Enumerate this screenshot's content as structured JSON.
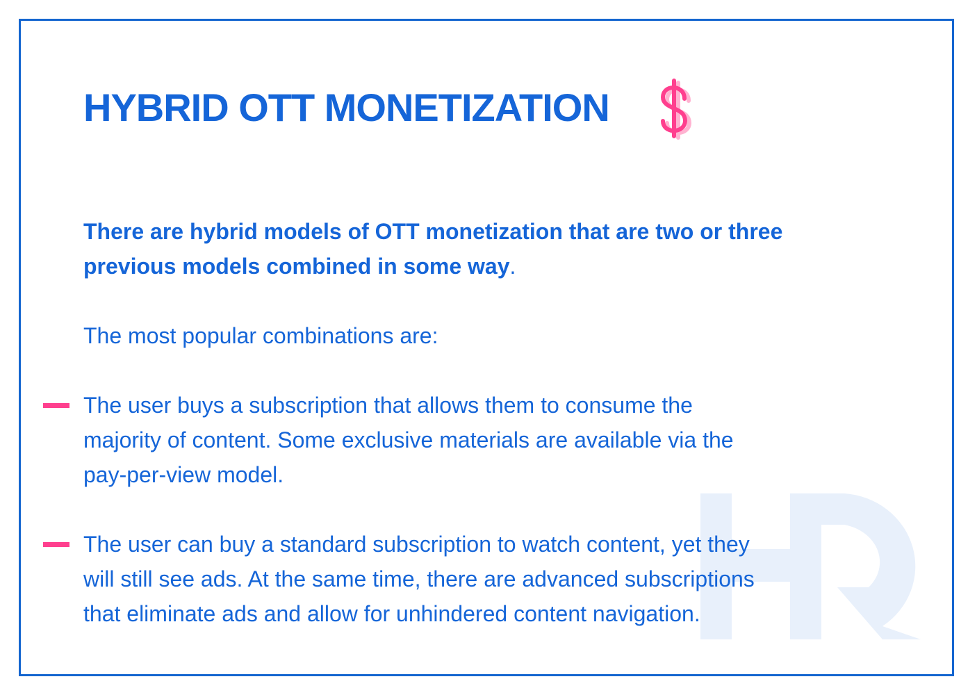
{
  "title": {
    "highlight": "HYBRID",
    "rest": " OTT MONETIZATION",
    "icon": "dollar-icon"
  },
  "intro": {
    "lines": [
      "There are hybrid models of OTT monetization that are two or three",
      "previous models combined in some way"
    ],
    "end": "."
  },
  "lead": "The most popular combinations are:",
  "bullets": [
    {
      "lines": [
        "The user buys a subscription that allows them to consume the",
        "majority of content. Some exclusive materials are available via the",
        "pay-per-view model."
      ]
    },
    {
      "lines": [
        "The user can buy a standard subscription to watch content, yet they",
        "will still see ads. At the same time, there are advanced subscriptions",
        "that eliminate ads and allow for unhindered content navigation."
      ]
    }
  ],
  "watermark": "HR",
  "colors": {
    "primary": "#1565d8",
    "accent": "#ff3f8e",
    "watermark": "#e8f0fb"
  }
}
